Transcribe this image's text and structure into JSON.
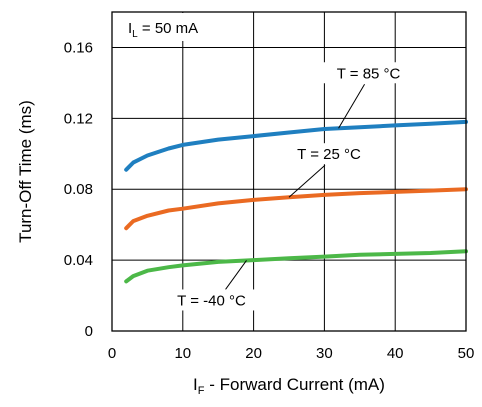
{
  "chart_data": {
    "type": "line",
    "xlabel": "I",
    "xlabel_sub": "F",
    "xlabel_rest": " - Forward Current (mA)",
    "ylabel": "Turn-Off Time (ms)",
    "xlim": [
      0,
      50
    ],
    "ylim": [
      0,
      0.18
    ],
    "xticks": [
      0,
      10,
      20,
      30,
      40,
      50
    ],
    "yticks": [
      0,
      0.04,
      0.08,
      0.12,
      0.16
    ],
    "ytick_labels": [
      "0",
      "0.04",
      "0.08",
      "0.12",
      "0.16"
    ],
    "grid": true,
    "condition": {
      "main": "I",
      "sub": "L",
      "rest": " = 50 mA"
    },
    "series": [
      {
        "name": "T = 85 °C",
        "color": "#1f7fc0",
        "x": [
          2,
          3,
          5,
          8,
          10,
          15,
          20,
          25,
          30,
          35,
          40,
          45,
          50
        ],
        "y": [
          0.091,
          0.095,
          0.099,
          0.103,
          0.105,
          0.108,
          0.11,
          0.112,
          0.114,
          0.115,
          0.116,
          0.117,
          0.118
        ]
      },
      {
        "name": "T = 25 °C",
        "color": "#ea6a22",
        "x": [
          2,
          3,
          5,
          8,
          10,
          15,
          20,
          25,
          30,
          35,
          40,
          45,
          50
        ],
        "y": [
          0.058,
          0.062,
          0.065,
          0.068,
          0.069,
          0.072,
          0.074,
          0.0755,
          0.0768,
          0.0778,
          0.0785,
          0.0792,
          0.08
        ]
      },
      {
        "name": "T = -40 °C",
        "color": "#4cb848",
        "x": [
          2,
          3,
          5,
          8,
          10,
          15,
          20,
          25,
          30,
          35,
          40,
          45,
          50
        ],
        "y": [
          0.028,
          0.031,
          0.034,
          0.036,
          0.037,
          0.039,
          0.04,
          0.041,
          0.042,
          0.043,
          0.0435,
          0.044,
          0.045
        ]
      }
    ],
    "annotations": [
      {
        "text": "T = 85 °C",
        "series": 0,
        "at_x": 32
      },
      {
        "text": "T = 25 °C",
        "series": 1,
        "at_x": 25
      },
      {
        "text": "T = -40 °C",
        "series": 2,
        "at_x": 19
      }
    ]
  }
}
